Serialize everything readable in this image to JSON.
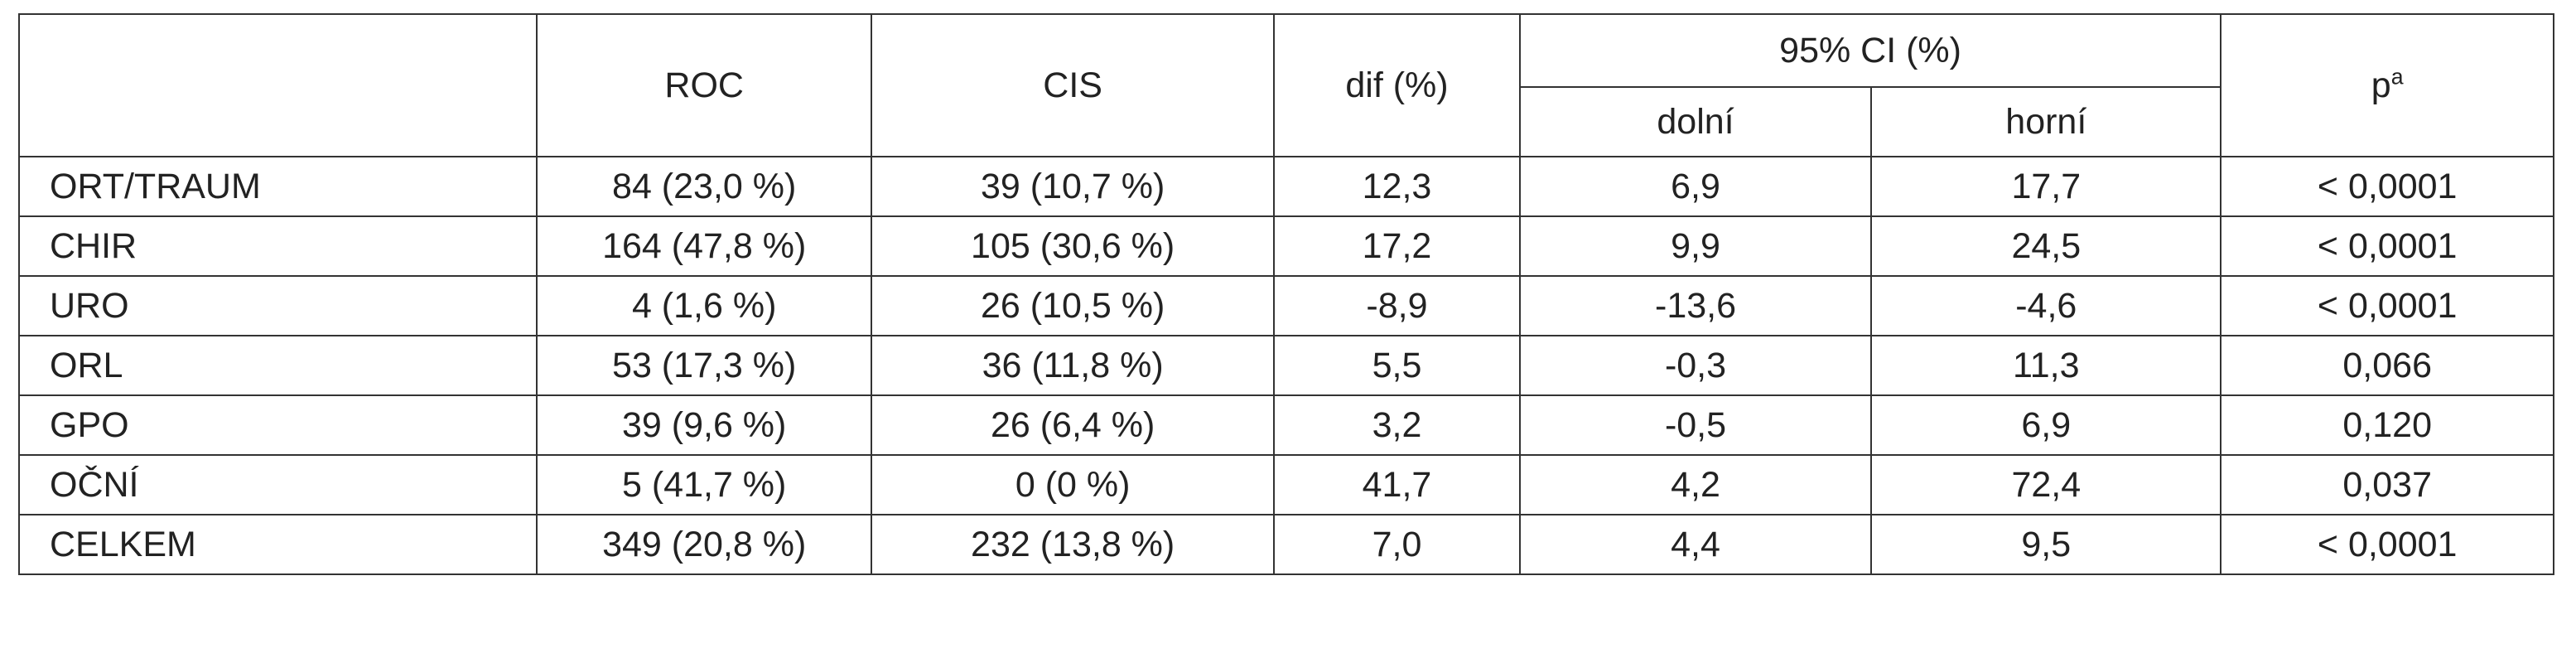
{
  "header": {
    "roc": "ROC",
    "cis": "CIS",
    "dif": "dif (%)",
    "ci": "95% CI (%)",
    "ci_lower": "dolní",
    "ci_upper": "horní",
    "p": "p",
    "p_sup": "a"
  },
  "rows": [
    {
      "label": "ORT/TRAUM",
      "roc": "84 (23,0 %)",
      "cis": "39 (10,7 %)",
      "dif": "12,3",
      "lower": "6,9",
      "upper": "17,7",
      "p": "< 0,0001"
    },
    {
      "label": "CHIR",
      "roc": "164 (47,8 %)",
      "cis": "105 (30,6 %)",
      "dif": "17,2",
      "lower": "9,9",
      "upper": "24,5",
      "p": "< 0,0001"
    },
    {
      "label": "URO",
      "roc": "4 (1,6 %)",
      "cis": "26 (10,5 %)",
      "dif": "-8,9",
      "lower": "-13,6",
      "upper": "-4,6",
      "p": "< 0,0001"
    },
    {
      "label": "ORL",
      "roc": "53 (17,3 %)",
      "cis": "36 (11,8 %)",
      "dif": "5,5",
      "lower": "-0,3",
      "upper": "11,3",
      "p": "0,066"
    },
    {
      "label": "GPO",
      "roc": "39 (9,6 %)",
      "cis": "26 (6,4 %)",
      "dif": "3,2",
      "lower": "-0,5",
      "upper": "6,9",
      "p": "0,120"
    },
    {
      "label": "OČNÍ",
      "roc": "5 (41,7 %)",
      "cis": "0 (0 %)",
      "dif": "41,7",
      "lower": "4,2",
      "upper": "72,4",
      "p": "0,037"
    },
    {
      "label": "CELKEM",
      "roc": "349 (20,8 %)",
      "cis": "232 (13,8 %)",
      "dif": "7,0",
      "lower": "4,4",
      "upper": "9,5",
      "p": "< 0,0001"
    }
  ]
}
